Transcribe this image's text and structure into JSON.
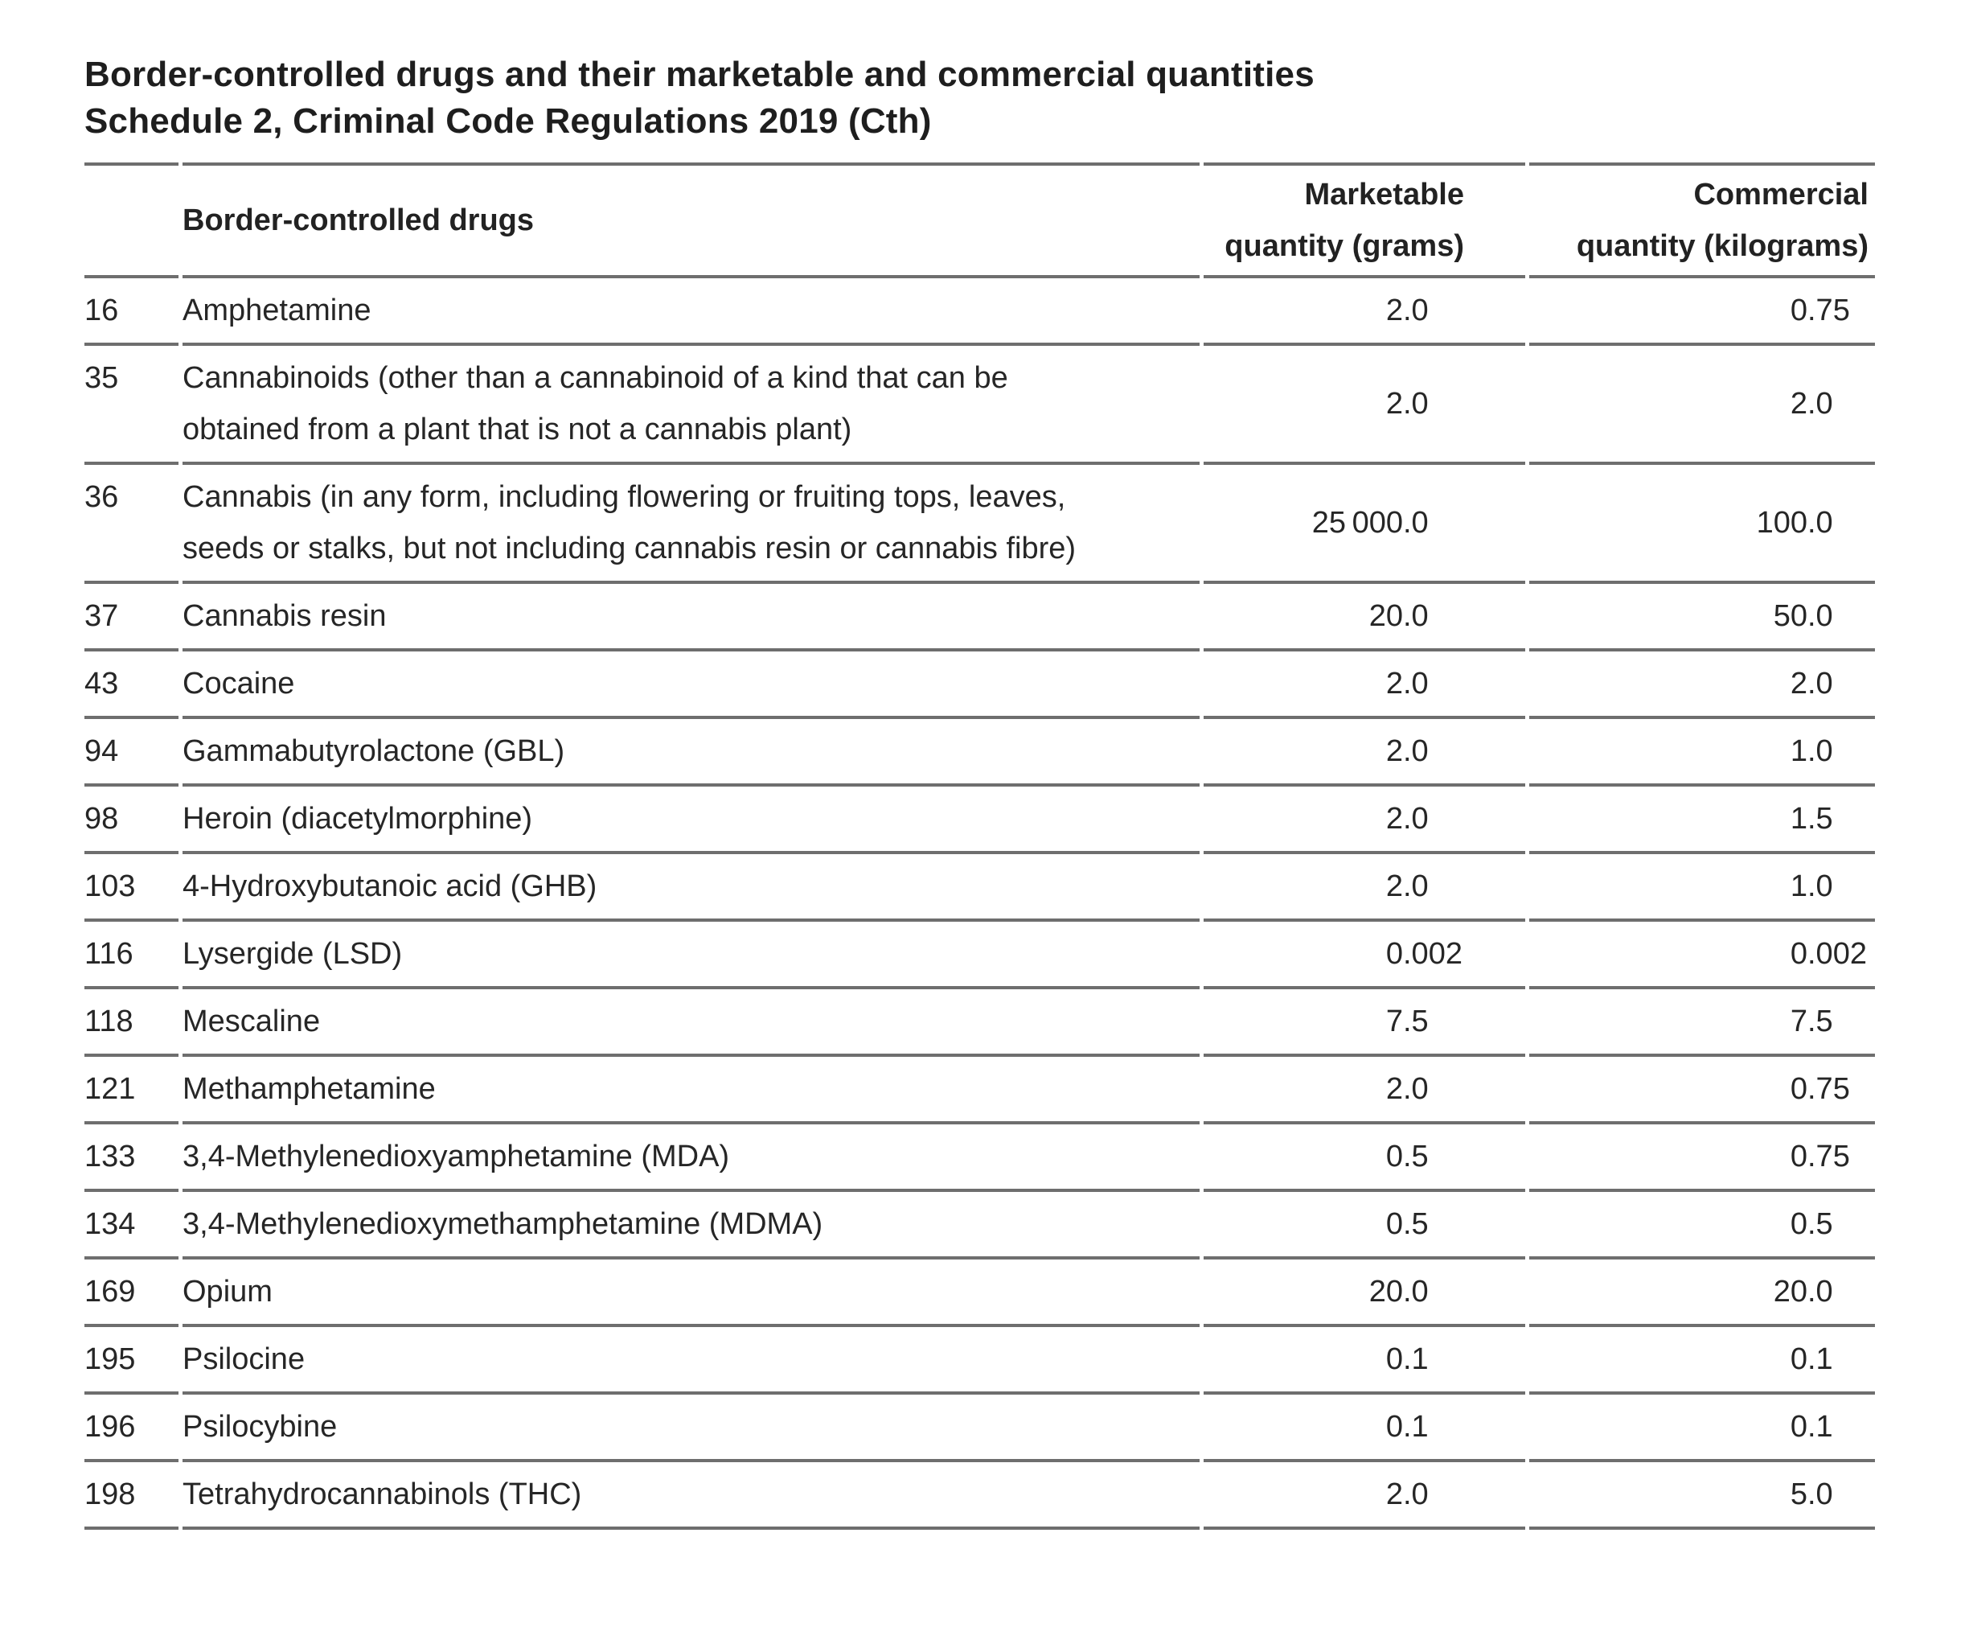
{
  "title": {
    "line1": "Border-controlled drugs and their marketable and commercial quantities",
    "line2": "Schedule 2, Criminal Code Regulations 2019 (Cth)"
  },
  "table": {
    "headers": {
      "code": "",
      "drug": "Border-controlled drugs",
      "marketable": "Marketable\nquantity (grams)",
      "commercial": "Commercial\nquantity (kilograms)"
    },
    "rows": [
      {
        "code": "16",
        "drug": "Amphetamine",
        "marketable": "2.0",
        "commercial": "0.75"
      },
      {
        "code": "35",
        "drug": "Cannabinoids (other than a cannabinoid of a kind that can be\nobtained from a plant that is not a cannabis plant)",
        "marketable": "2.0",
        "commercial": "2.0"
      },
      {
        "code": "36",
        "drug": "Cannabis (in any form, including flowering or fruiting tops, leaves,\nseeds or stalks, but not including cannabis resin or cannabis fibre)",
        "marketable": "25 000.0",
        "commercial": "100.0"
      },
      {
        "code": "37",
        "drug": "Cannabis resin",
        "marketable": "20.0",
        "commercial": "50.0"
      },
      {
        "code": "43",
        "drug": "Cocaine",
        "marketable": "2.0",
        "commercial": "2.0"
      },
      {
        "code": "94",
        "drug": "Gammabutyrolactone (GBL)",
        "marketable": "2.0",
        "commercial": "1.0"
      },
      {
        "code": "98",
        "drug": "Heroin (diacetylmorphine)",
        "marketable": "2.0",
        "commercial": "1.5"
      },
      {
        "code": "103",
        "drug": "4-Hydroxybutanoic acid (GHB)",
        "marketable": "2.0",
        "commercial": "1.0"
      },
      {
        "code": "116",
        "drug": "Lysergide (LSD)",
        "marketable": "0.002",
        "commercial": "0.002"
      },
      {
        "code": "118",
        "drug": "Mescaline",
        "marketable": "7.5",
        "commercial": "7.5"
      },
      {
        "code": "121",
        "drug": "Methamphetamine",
        "marketable": "2.0",
        "commercial": "0.75"
      },
      {
        "code": "133",
        "drug": "3,4-Methylenedioxyamphetamine (MDA)",
        "marketable": "0.5",
        "commercial": "0.75"
      },
      {
        "code": "134",
        "drug": "3,4-Methylenedioxymethamphetamine (MDMA)",
        "marketable": "0.5",
        "commercial": "0.5"
      },
      {
        "code": "169",
        "drug": "Opium",
        "marketable": "20.0",
        "commercial": "20.0"
      },
      {
        "code": "195",
        "drug": "Psilocine",
        "marketable": "0.1",
        "commercial": "0.1"
      },
      {
        "code": "196",
        "drug": "Psilocybine",
        "marketable": "0.1",
        "commercial": "0.1"
      },
      {
        "code": "198",
        "drug": "Tetrahydrocannabinols (THC)",
        "marketable": "2.0",
        "commercial": "5.0"
      }
    ]
  },
  "colors": {
    "background": "#ffffff",
    "text": "#262626",
    "heading": "#1e1e1e",
    "rule": "#6e6e6e"
  }
}
